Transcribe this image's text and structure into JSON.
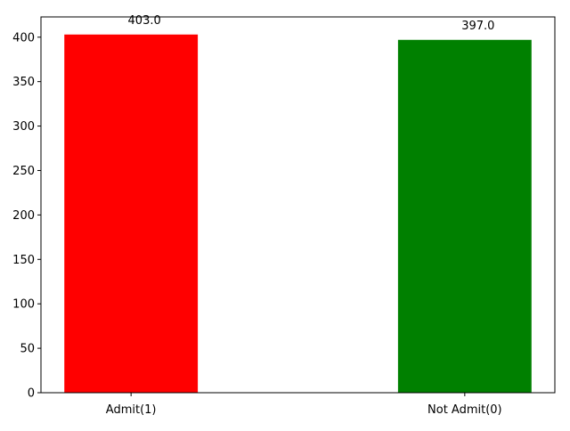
{
  "chart_data": {
    "type": "bar",
    "categories": [
      "Admit(1)",
      "Not Admit(0)"
    ],
    "values": [
      403.0,
      397.0
    ],
    "value_labels": [
      "403.0",
      "397.0"
    ],
    "colors": [
      "#ff0000",
      "#008000"
    ],
    "ylim": [
      0,
      422.8
    ],
    "yticks": [
      0,
      50,
      100,
      150,
      200,
      250,
      300,
      350,
      400
    ],
    "ytick_labels": [
      "0",
      "50",
      "100",
      "150",
      "200",
      "250",
      "300",
      "350",
      "400"
    ],
    "title": "",
    "xlabel": "",
    "ylabel": "",
    "grid": false,
    "legend": false
  }
}
